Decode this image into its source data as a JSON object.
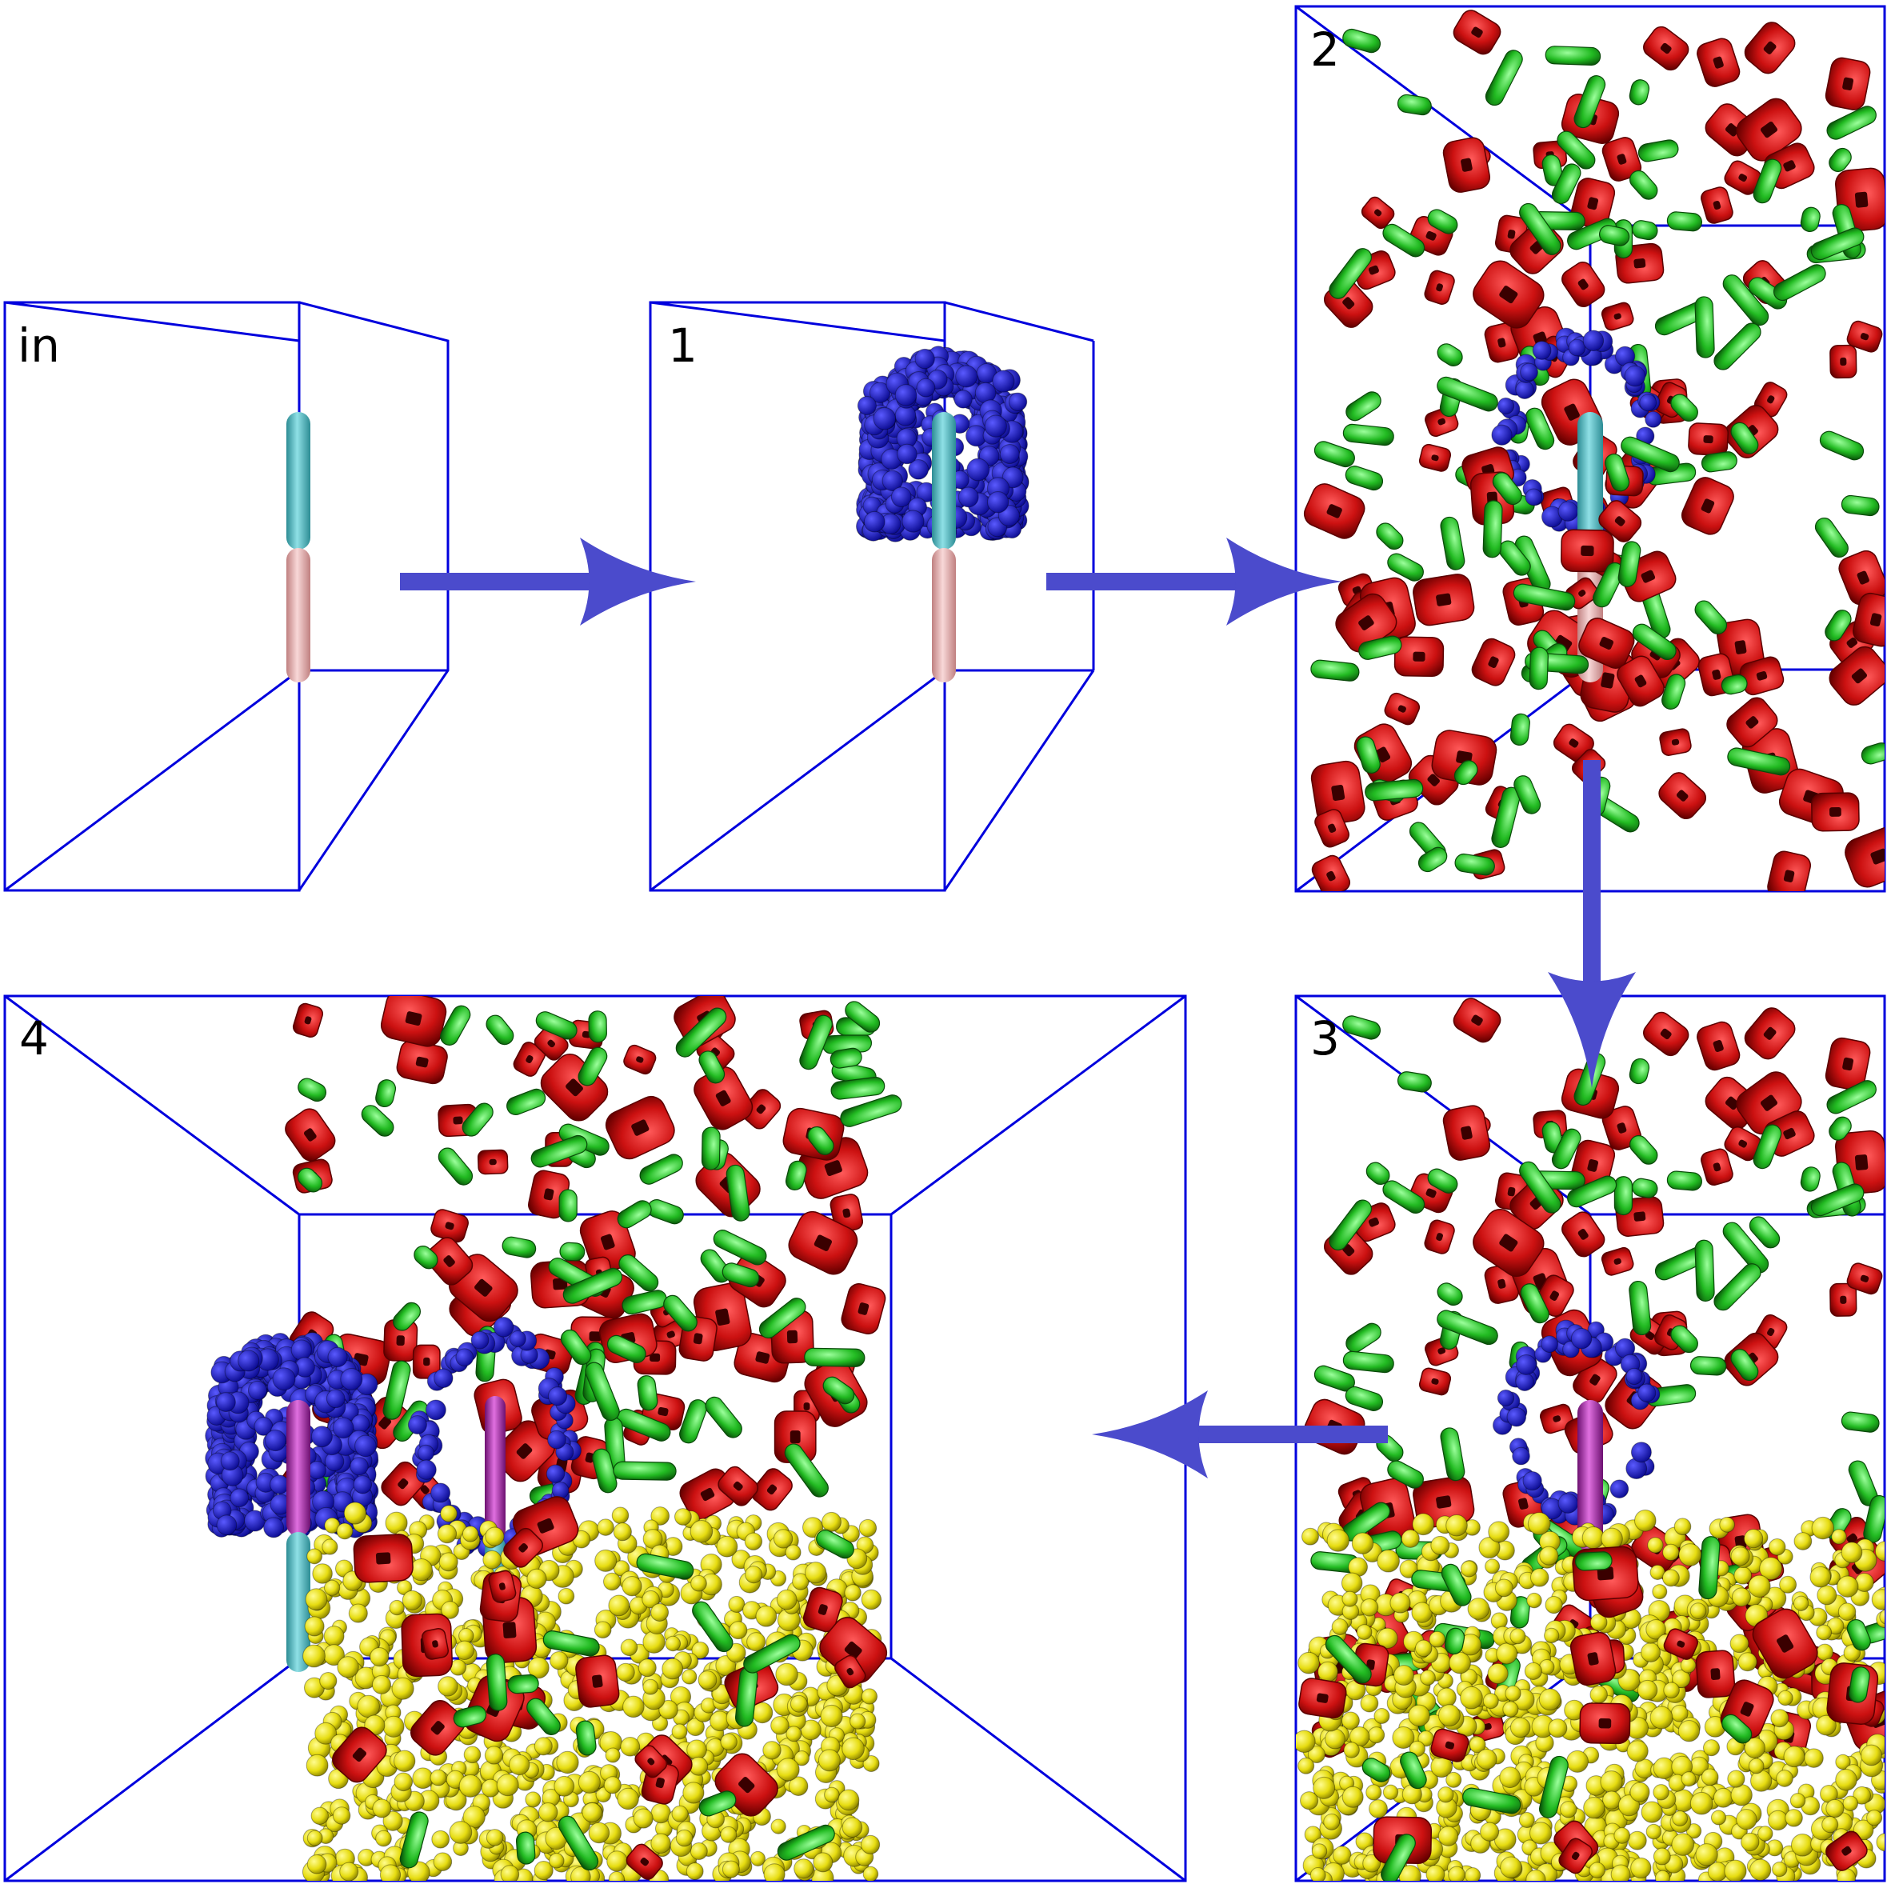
{
  "panels": [
    {
      "id": "in",
      "label": "in"
    },
    {
      "id": "1",
      "label": "1"
    },
    {
      "id": "2",
      "label": "2"
    },
    {
      "id": "3",
      "label": "3"
    },
    {
      "id": "4",
      "label": "4"
    }
  ],
  "colors": {
    "box": "#0000dd",
    "arrow": "#4b4bcc",
    "rod_cyan": "#5bbcc4",
    "rod_pink": "#e8b4b4",
    "rod_magenta": "#b03cb0",
    "cap_blue": "#1c1cc8",
    "particle_red": "#cc1111",
    "particle_green": "#22bb22",
    "particle_yellow": "#e8e020"
  },
  "arrows": [
    {
      "from": "in",
      "to": "1",
      "direction": "right"
    },
    {
      "from": "1",
      "to": "2",
      "direction": "right"
    },
    {
      "from": "2",
      "to": "3",
      "direction": "down"
    },
    {
      "from": "3",
      "to": "4",
      "direction": "left"
    }
  ]
}
